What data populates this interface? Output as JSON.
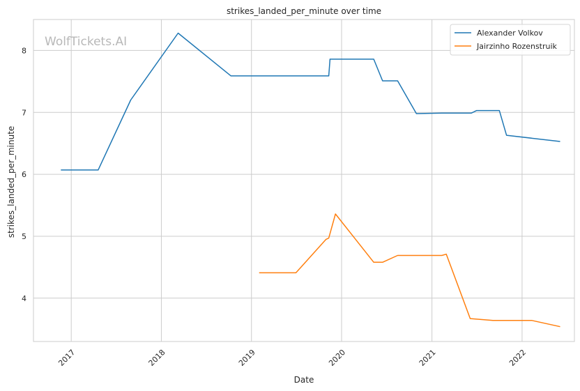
{
  "chart_data": {
    "type": "line",
    "title": "strikes_landed_per_minute over time",
    "xlabel": "Date",
    "ylabel": "strikes_landed_per_minute",
    "x_ticks": [
      "2017",
      "2018",
      "2019",
      "2020",
      "2021",
      "2022"
    ],
    "y_ticks": [
      "4",
      "5",
      "6",
      "7",
      "8"
    ],
    "xlim": [
      "2016-08-01",
      "2022-08-01"
    ],
    "ylim": [
      3.3,
      8.5
    ],
    "grid": true,
    "legend_position": "top-right",
    "watermark": "WolfTickets.AI",
    "series": [
      {
        "name": "Alexander Volkov",
        "color": "#1f77b4",
        "points": [
          [
            "2016-11-20",
            6.07
          ],
          [
            "2017-04-20",
            6.07
          ],
          [
            "2017-08-30",
            7.2
          ],
          [
            "2018-03-10",
            8.28
          ],
          [
            "2018-10-10",
            7.59
          ],
          [
            "2019-11-10",
            7.59
          ],
          [
            "2019-11-15",
            7.86
          ],
          [
            "2020-05-10",
            7.86
          ],
          [
            "2020-06-15",
            7.51
          ],
          [
            "2020-08-15",
            7.51
          ],
          [
            "2020-10-30",
            6.98
          ],
          [
            "2021-02-10",
            6.99
          ],
          [
            "2021-06-10",
            6.99
          ],
          [
            "2021-07-01",
            7.03
          ],
          [
            "2021-10-01",
            7.03
          ],
          [
            "2021-10-30",
            6.63
          ],
          [
            "2022-06-04",
            6.53
          ]
        ]
      },
      {
        "name": "Jairzinho Rozenstruik",
        "color": "#ff7f0e",
        "points": [
          [
            "2019-02-01",
            4.41
          ],
          [
            "2019-06-30",
            4.41
          ],
          [
            "2019-10-30",
            4.95
          ],
          [
            "2019-11-10",
            4.97
          ],
          [
            "2019-12-07",
            5.36
          ],
          [
            "2020-05-10",
            4.58
          ],
          [
            "2020-06-15",
            4.58
          ],
          [
            "2020-08-15",
            4.69
          ],
          [
            "2021-02-10",
            4.69
          ],
          [
            "2021-02-28",
            4.71
          ],
          [
            "2021-06-05",
            3.67
          ],
          [
            "2021-09-05",
            3.64
          ],
          [
            "2022-02-10",
            3.64
          ],
          [
            "2022-06-04",
            3.54
          ]
        ]
      }
    ]
  }
}
